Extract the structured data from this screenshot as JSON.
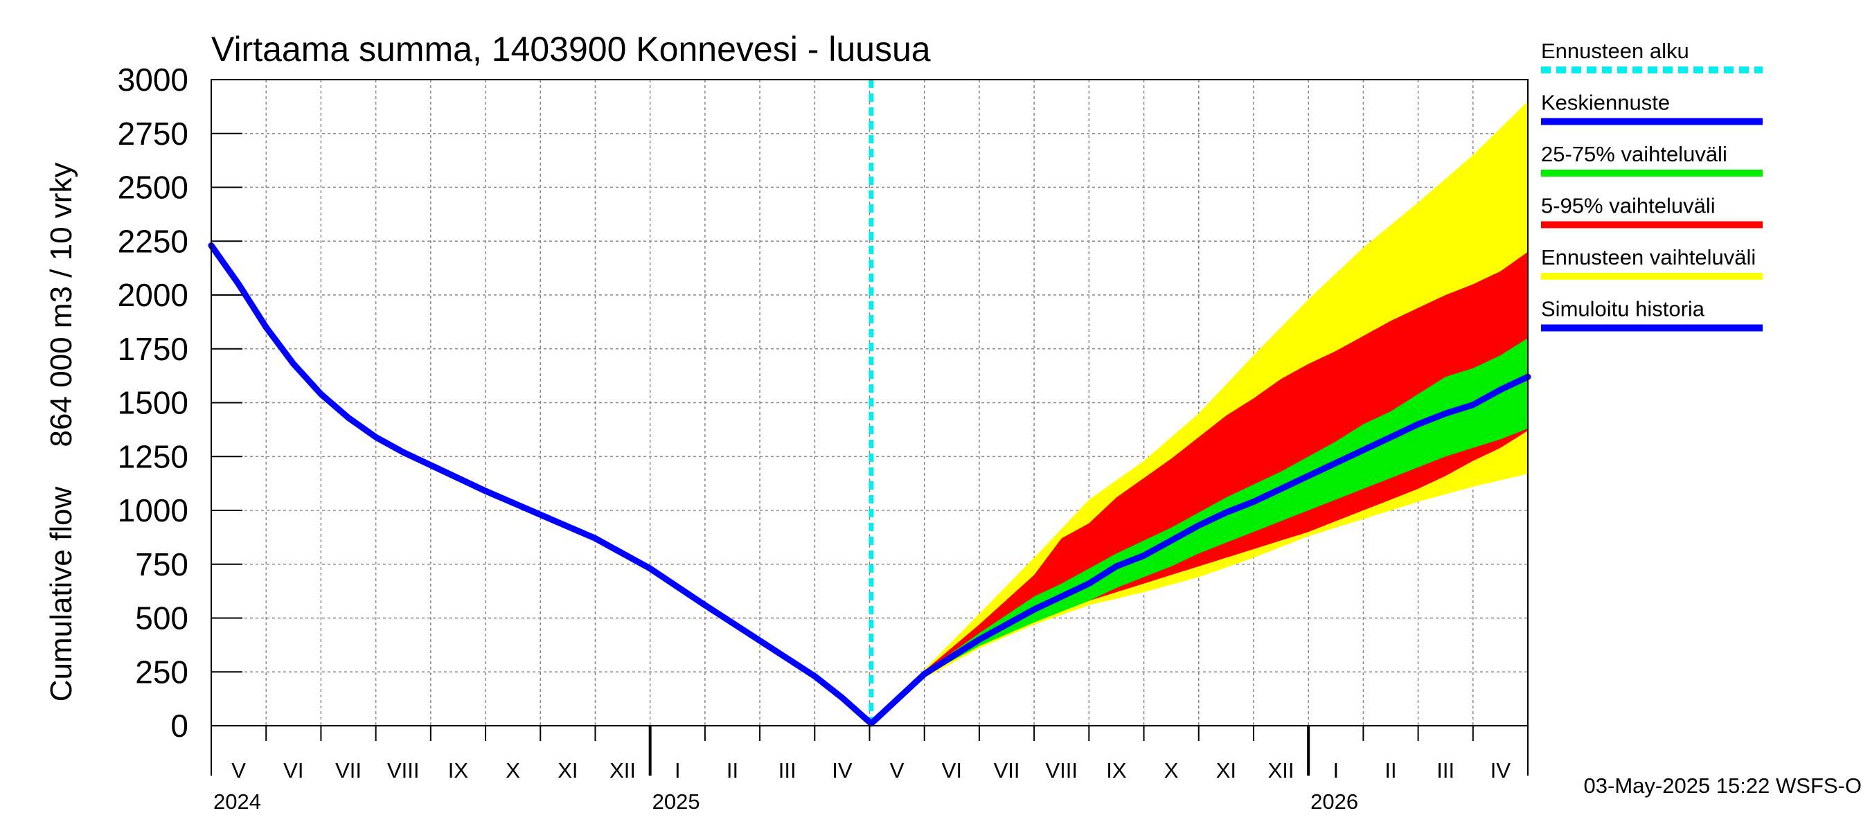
{
  "chart_data": {
    "type": "area",
    "title": "Virtaama summa, 1403900 Konnevesi - luusua",
    "ylabel_fi": "864 000 m3 / 10 vrky",
    "ylabel_en": "Cumulative flow",
    "ylim": [
      0,
      3000
    ],
    "yticks": [
      0,
      250,
      500,
      750,
      1000,
      1250,
      1500,
      1750,
      2000,
      2250,
      2500,
      2750,
      3000
    ],
    "ytick_labels": [
      "0",
      "250",
      "500",
      "750",
      "1000",
      "1250",
      "1500",
      "1750",
      "2000",
      "2250",
      "2500",
      "2750",
      "3000"
    ],
    "x_unit": "months since 2024-05-01",
    "xlim": [
      0,
      24
    ],
    "month_labels": [
      "V",
      "VI",
      "VII",
      "VIII",
      "IX",
      "X",
      "XI",
      "XII",
      "I",
      "II",
      "III",
      "IV",
      "V",
      "VI",
      "VII",
      "VIII",
      "IX",
      "X",
      "XI",
      "XII",
      "I",
      "II",
      "III",
      "IV"
    ],
    "year_labels": [
      {
        "label": "2024",
        "month_index": 0
      },
      {
        "label": "2025",
        "month_index": 8
      },
      {
        "label": "2026",
        "month_index": 20
      }
    ],
    "forecast_start": 12.03,
    "series": [
      {
        "name": "Simuloitu historia",
        "color": "#0000ff",
        "x": [
          0,
          0.5,
          1,
          1.5,
          2,
          2.5,
          3,
          3.5,
          4,
          5,
          6,
          7,
          8,
          9,
          10,
          11,
          11.5,
          12.03
        ],
        "values": [
          2230,
          2050,
          1850,
          1680,
          1540,
          1430,
          1340,
          1270,
          1210,
          1090,
          980,
          870,
          730,
          560,
          395,
          230,
          130,
          10
        ]
      },
      {
        "name": "Keskiennuste",
        "color": "#0000ff",
        "x": [
          12.03,
          13,
          14,
          15,
          15.5,
          16,
          16.5,
          17,
          17.5,
          18,
          18.5,
          19,
          19.5,
          20,
          20.5,
          21,
          21.5,
          22,
          22.5,
          23,
          23.5,
          24
        ],
        "values": [
          10,
          240,
          400,
          540,
          600,
          660,
          740,
          790,
          860,
          930,
          990,
          1040,
          1100,
          1160,
          1220,
          1280,
          1340,
          1400,
          1450,
          1490,
          1560,
          1620
        ]
      }
    ],
    "bands": [
      {
        "name": "Ennusteen vaihteluväli",
        "color": "#ffff00",
        "x": [
          12.03,
          13,
          14,
          15,
          16,
          17,
          18,
          19,
          20,
          21,
          22,
          23,
          24
        ],
        "upper": [
          10,
          260,
          520,
          780,
          1050,
          1230,
          1450,
          1720,
          1980,
          2220,
          2430,
          2650,
          2900
        ],
        "lower": [
          10,
          220,
          360,
          470,
          560,
          620,
          690,
          780,
          880,
          960,
          1040,
          1110,
          1170
        ]
      },
      {
        "name": "5-95% vaihteluväli",
        "color": "#ff0000",
        "x": [
          12.03,
          13,
          14,
          15,
          15.5,
          16,
          16.5,
          17,
          17.5,
          18,
          18.5,
          19,
          19.5,
          20,
          20.5,
          21,
          21.5,
          22,
          22.5,
          23,
          23.5,
          24
        ],
        "upper": [
          10,
          255,
          470,
          700,
          870,
          940,
          1060,
          1150,
          1240,
          1340,
          1440,
          1520,
          1610,
          1680,
          1740,
          1810,
          1880,
          1940,
          2000,
          2050,
          2110,
          2200
        ],
        "lower": [
          10,
          225,
          380,
          490,
          540,
          580,
          620,
          660,
          700,
          740,
          780,
          820,
          860,
          900,
          950,
          1000,
          1050,
          1100,
          1160,
          1230,
          1290,
          1370
        ]
      },
      {
        "name": "25-75% vaihteluväli",
        "color": "#00ee00",
        "x": [
          12.03,
          13,
          14,
          15,
          15.5,
          16,
          16.5,
          17,
          17.5,
          18,
          18.5,
          19,
          19.5,
          20,
          20.5,
          21,
          21.5,
          22,
          22.5,
          23,
          23.5,
          24
        ],
        "upper": [
          10,
          248,
          430,
          600,
          660,
          730,
          800,
          860,
          920,
          990,
          1060,
          1120,
          1180,
          1250,
          1320,
          1400,
          1460,
          1540,
          1620,
          1660,
          1720,
          1800
        ],
        "lower": [
          10,
          232,
          370,
          480,
          530,
          580,
          640,
          690,
          740,
          800,
          850,
          900,
          950,
          1000,
          1050,
          1100,
          1150,
          1200,
          1250,
          1290,
          1330,
          1380
        ]
      }
    ],
    "legend": [
      {
        "label": "Ennusteen alku",
        "color": "#00eeee",
        "style": "dashed"
      },
      {
        "label": "Keskiennuste",
        "color": "#0000ff",
        "style": "solid"
      },
      {
        "label": "25-75% vaihteluväli",
        "color": "#00ee00",
        "style": "solid"
      },
      {
        "label": "5-95% vaihteluväli",
        "color": "#ff0000",
        "style": "solid"
      },
      {
        "label": "Ennusteen vaihteluväli",
        "color": "#ffff00",
        "style": "solid"
      },
      {
        "label": "Simuloitu historia",
        "color": "#0000ff",
        "style": "solid"
      }
    ],
    "legend_position": "right",
    "grid": true,
    "footer": "03-May-2025 15:22 WSFS-O"
  }
}
